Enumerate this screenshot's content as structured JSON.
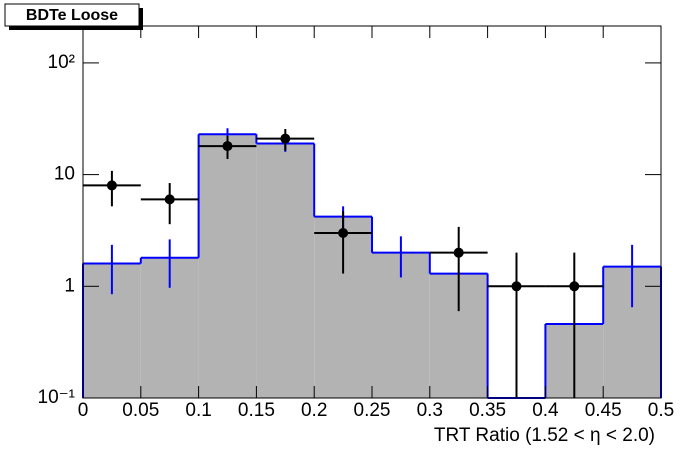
{
  "chart_data": {
    "type": "histogram",
    "title": "BDTe Loose",
    "x_label": "TRT Ratio (1.52 <  η < 2.0)",
    "bins": [
      0,
      0.05,
      0.1,
      0.15,
      0.2,
      0.25,
      0.3,
      0.35,
      0.4,
      0.45,
      0.5
    ],
    "series": [
      {
        "color": "#0000ff",
        "fill": "#b3b3b3",
        "style": "filled-step",
        "values": [
          1.6,
          1.8,
          23,
          19,
          4.2,
          2.0,
          1.3,
          0,
          0.46,
          1.5
        ],
        "errors": [
          0.75,
          0.83,
          3,
          3,
          1,
          0.8,
          0,
          0,
          0,
          0.85
        ]
      },
      {
        "color": "#000000",
        "style": "points",
        "values": [
          8,
          6,
          18,
          21,
          3,
          null,
          2,
          1,
          1,
          null
        ],
        "errors": [
          2.8,
          2.4,
          4.2,
          4.6,
          1.7,
          null,
          1.4,
          1,
          1,
          null
        ]
      }
    ],
    "xlim": [
      0,
      0.5
    ],
    "xticks": [
      0,
      0.05,
      0.1,
      0.15,
      0.2,
      0.25,
      0.3,
      0.35,
      0.4,
      0.45,
      0.5
    ],
    "ylim": [
      0.1,
      214
    ],
    "yticks": [
      {
        "value": 0.1,
        "label": "10⁻¹"
      },
      1,
      10,
      {
        "value": 100,
        "label": "10²"
      }
    ],
    "log_y": true
  }
}
